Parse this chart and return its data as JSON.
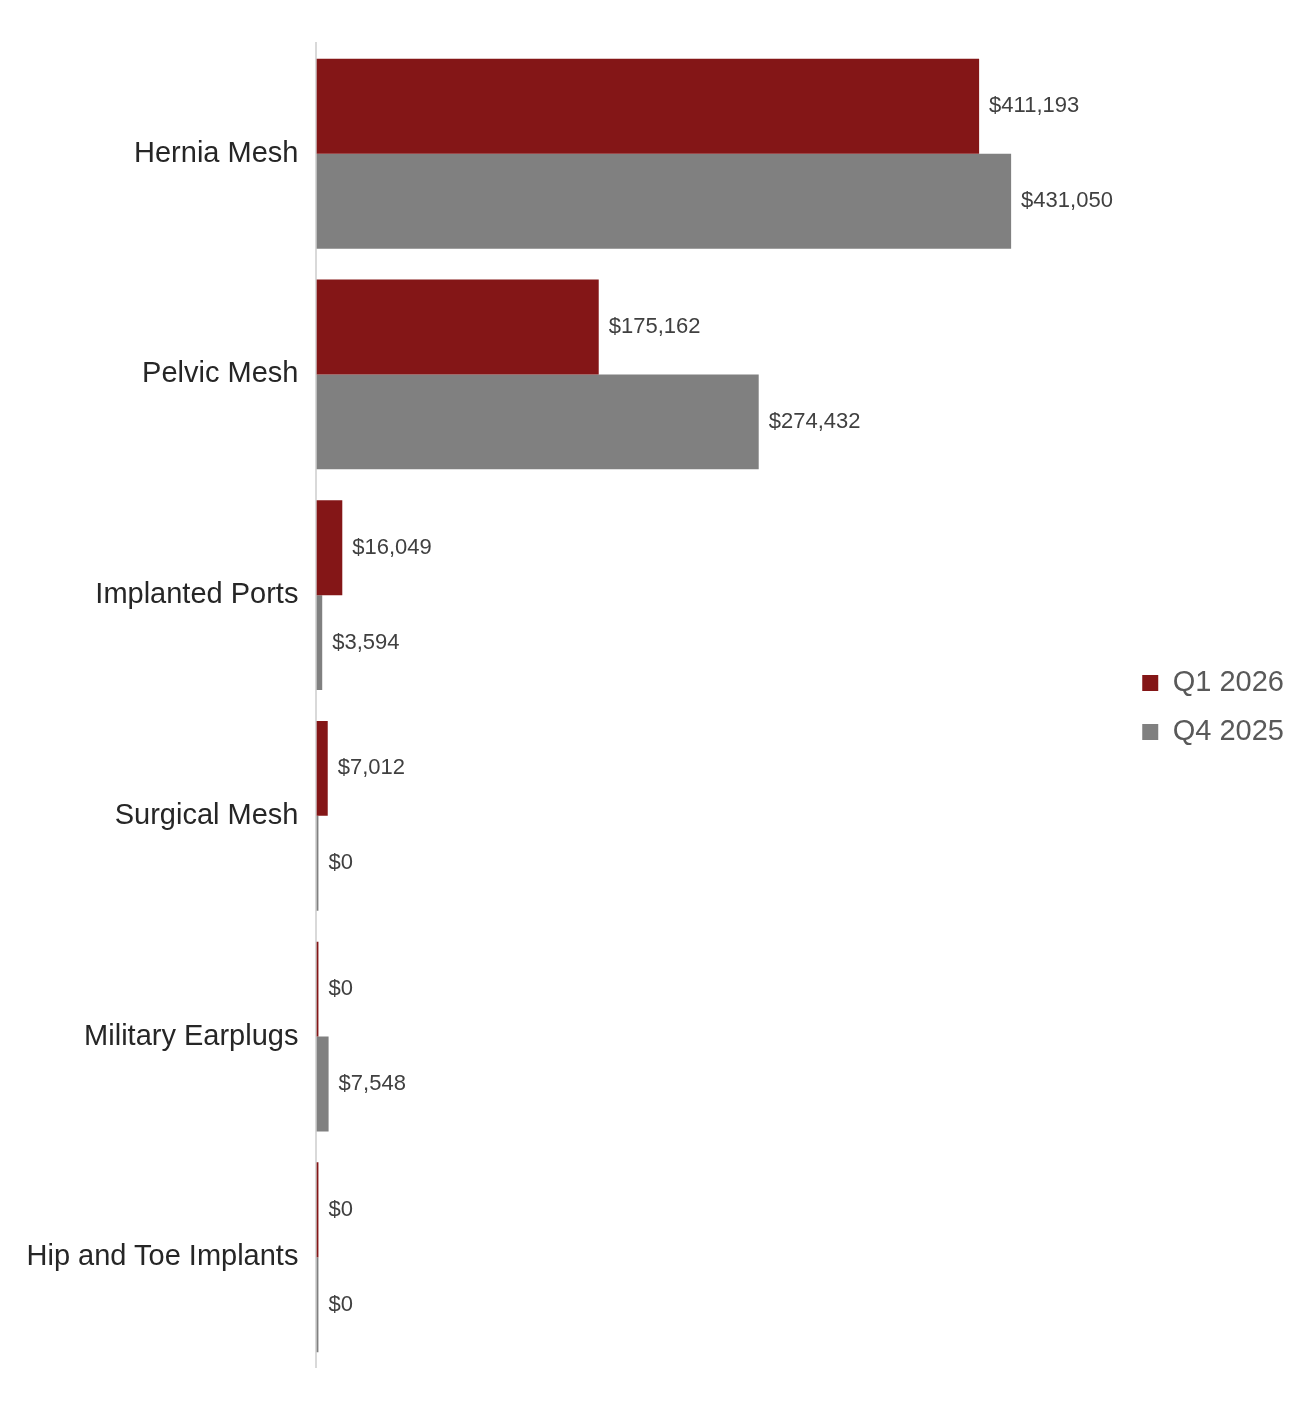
{
  "chart_data": {
    "type": "bar",
    "orientation": "horizontal",
    "categories": [
      "Hernia Mesh",
      "Pelvic Mesh",
      "Implanted Ports",
      "Surgical Mesh",
      "Military Earplugs",
      "Hip and Toe Implants"
    ],
    "series": [
      {
        "name": "Q1 2026",
        "color": "#841617",
        "values": [
          411193,
          175162,
          16049,
          7012,
          0,
          0
        ],
        "value_labels": [
          "$411,193",
          "$175,162",
          "$16,049",
          "$7,012",
          "$0",
          "$0"
        ]
      },
      {
        "name": "Q4 2025",
        "color": "#808080",
        "values": [
          431050,
          274432,
          3594,
          0,
          7548,
          0
        ],
        "value_labels": [
          "$431,050",
          "$274,432",
          "$3,594",
          "$0",
          "$7,548",
          "$0"
        ]
      }
    ],
    "grid": false,
    "legend": "right"
  }
}
